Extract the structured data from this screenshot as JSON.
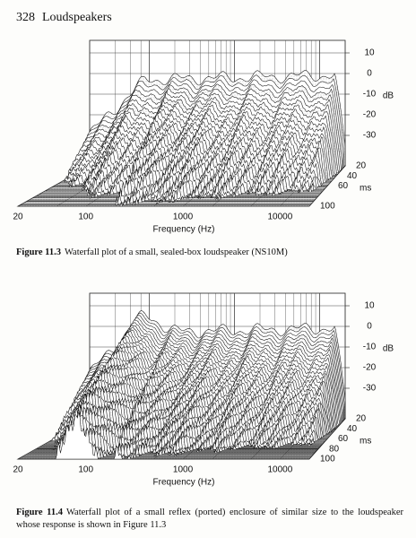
{
  "header": {
    "page_number": "328",
    "running_title": "Loudspeakers"
  },
  "figures": [
    {
      "frequency_ticks": [
        "20",
        "100",
        "1000",
        "10000"
      ],
      "frequency_label": "Frequency (Hz)",
      "db_ticks": [
        "10",
        "0",
        "-10",
        "-20",
        "-30"
      ],
      "db_label": "dB",
      "ms_ticks": [
        "20",
        "40",
        "60",
        "100"
      ],
      "ms_label": "ms",
      "caption_label": "Figure 11.3",
      "caption_text": "Waterfall plot of a small, sealed-box loudspeaker (NS10M)"
    },
    {
      "frequency_ticks": [
        "20",
        "100",
        "1000",
        "10000"
      ],
      "frequency_label": "Frequency (Hz)",
      "db_ticks": [
        "10",
        "0",
        "-10",
        "-20",
        "-30"
      ],
      "db_label": "dB",
      "ms_ticks": [
        "20",
        "40",
        "60",
        "80",
        "100"
      ],
      "ms_label": "ms",
      "caption_label": "Figure 11.4",
      "caption_text": "Waterfall plot of a small reflex (ported) enclosure of similar size to the loudspeaker whose response is shown in Figure 11.3"
    }
  ]
}
